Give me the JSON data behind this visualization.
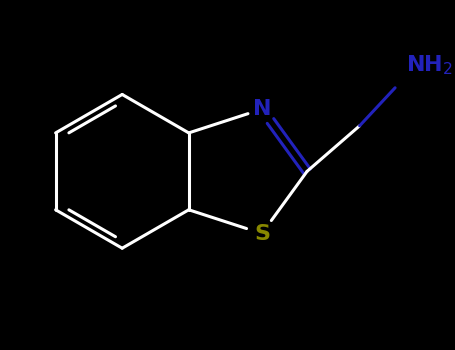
{
  "background_color": "#000000",
  "bond_color": "#ffffff",
  "N_color": "#2222bb",
  "S_color": "#888800",
  "NH2_color": "#2222bb",
  "bond_width": 2.2,
  "font_size_atom": 16,
  "figsize": [
    4.55,
    3.5
  ],
  "dpi": 100,
  "xlim": [
    -2.8,
    2.8
  ],
  "ylim": [
    -2.0,
    1.8
  ]
}
